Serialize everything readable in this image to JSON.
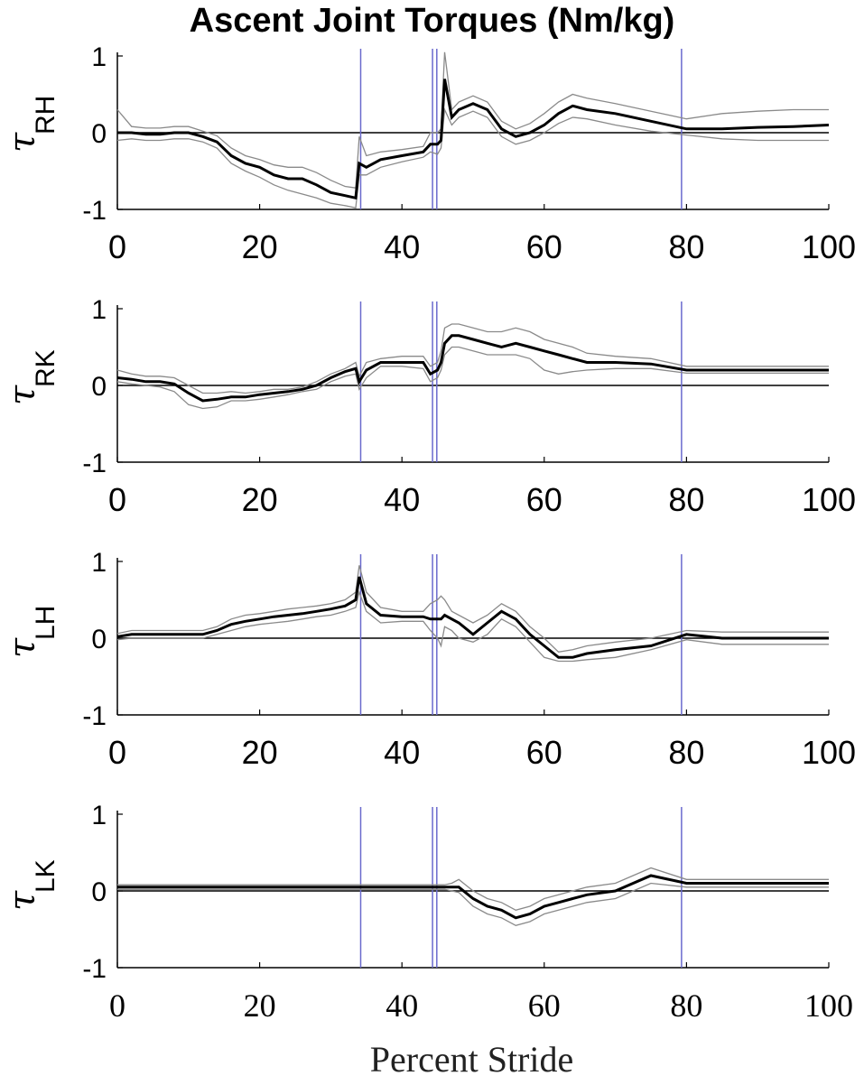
{
  "title": "Ascent Joint Torques (Nm/kg)",
  "xlabel": "Percent Stride",
  "chart_data": {
    "type": "line",
    "x_ticks": [
      "0",
      "20",
      "40",
      "60",
      "80",
      "100"
    ],
    "y_ticks": [
      "1",
      "0",
      "-1"
    ],
    "xlim": [
      0,
      100
    ],
    "ylim": [
      -1,
      1
    ],
    "event_lines_x": [
      34.2,
      44.3,
      44.9,
      79.3
    ],
    "colors": {
      "mean": "#000000",
      "band": "#8a8a8a",
      "event": "#6a6acd",
      "zero": "#000000"
    },
    "panels": [
      {
        "ylabel_symbol": "τ",
        "ylabel_subscript": "RH",
        "x": [
          0,
          2,
          4,
          6,
          8,
          10,
          12,
          14,
          16,
          18,
          20,
          22,
          24,
          26,
          28,
          30,
          32,
          33.5,
          34,
          35,
          37,
          40,
          43,
          44,
          45,
          45.5,
          46,
          47,
          48,
          50,
          52,
          54,
          56,
          58,
          60,
          62,
          64,
          66,
          70,
          75,
          80,
          85,
          90,
          95,
          100
        ],
        "mean": [
          0,
          0,
          -0.02,
          -0.02,
          0,
          0,
          -0.05,
          -0.12,
          -0.3,
          -0.4,
          -0.45,
          -0.55,
          -0.6,
          -0.6,
          -0.68,
          -0.78,
          -0.82,
          -0.85,
          -0.4,
          -0.45,
          -0.35,
          -0.3,
          -0.25,
          -0.15,
          -0.15,
          -0.1,
          0.7,
          0.2,
          0.3,
          0.38,
          0.3,
          0.05,
          -0.05,
          0.0,
          0.1,
          0.25,
          0.35,
          0.3,
          0.25,
          0.15,
          0.05,
          0.05,
          0.07,
          0.08,
          0.1
        ],
        "lower": [
          -0.1,
          -0.08,
          -0.1,
          -0.1,
          -0.08,
          -0.08,
          -0.12,
          -0.2,
          -0.4,
          -0.5,
          -0.58,
          -0.68,
          -0.75,
          -0.8,
          -0.85,
          -0.92,
          -0.95,
          -0.98,
          -0.55,
          -0.55,
          -0.45,
          -0.38,
          -0.32,
          -0.25,
          -0.28,
          -0.2,
          0.3,
          0.1,
          0.2,
          0.28,
          0.2,
          -0.05,
          -0.15,
          -0.1,
          0.0,
          0.12,
          0.2,
          0.18,
          0.1,
          0.02,
          -0.03,
          -0.08,
          -0.1,
          -0.1,
          -0.1
        ],
        "upper": [
          0.3,
          0.08,
          0.06,
          0.06,
          0.08,
          0.08,
          0.02,
          -0.04,
          -0.2,
          -0.3,
          -0.35,
          -0.42,
          -0.45,
          -0.45,
          -0.52,
          -0.62,
          -0.7,
          -0.72,
          -0.05,
          -0.3,
          -0.25,
          -0.22,
          -0.18,
          0.0,
          0.0,
          0.05,
          1.05,
          0.3,
          0.4,
          0.48,
          0.4,
          0.15,
          0.05,
          0.12,
          0.25,
          0.4,
          0.5,
          0.45,
          0.38,
          0.28,
          0.18,
          0.25,
          0.28,
          0.3,
          0.3
        ]
      },
      {
        "ylabel_symbol": "τ",
        "ylabel_subscript": "RK",
        "x": [
          0,
          2,
          4,
          6,
          8,
          10,
          12,
          14,
          16,
          18,
          20,
          22,
          24,
          26,
          28,
          30,
          32,
          33.5,
          34,
          35,
          37,
          40,
          43,
          44,
          45,
          45.5,
          46,
          47,
          48,
          50,
          52,
          54,
          56,
          58,
          60,
          62,
          64,
          66,
          70,
          75,
          80,
          85,
          90,
          95,
          100
        ],
        "mean": [
          0.1,
          0.08,
          0.05,
          0.05,
          0.02,
          -0.1,
          -0.2,
          -0.18,
          -0.15,
          -0.15,
          -0.12,
          -0.1,
          -0.08,
          -0.05,
          0,
          0.1,
          0.18,
          0.22,
          0.05,
          0.2,
          0.3,
          0.3,
          0.3,
          0.15,
          0.2,
          0.3,
          0.55,
          0.65,
          0.65,
          0.6,
          0.55,
          0.5,
          0.55,
          0.5,
          0.45,
          0.4,
          0.35,
          0.3,
          0.3,
          0.28,
          0.2,
          0.2,
          0.2,
          0.2,
          0.2
        ],
        "lower": [
          0.05,
          0.02,
          0,
          -0.02,
          -0.08,
          -0.25,
          -0.3,
          -0.28,
          -0.2,
          -0.2,
          -0.18,
          -0.15,
          -0.12,
          -0.08,
          -0.05,
          0.05,
          0.12,
          0.15,
          -0.05,
          0.1,
          0.25,
          0.25,
          0.22,
          0.05,
          0.1,
          0.2,
          0.4,
          0.5,
          0.5,
          0.45,
          0.4,
          0.4,
          0.4,
          0.35,
          0.2,
          0.15,
          0.18,
          0.2,
          0.22,
          0.22,
          0.16,
          0.16,
          0.16,
          0.16,
          0.16
        ],
        "upper": [
          0.2,
          0.15,
          0.12,
          0.12,
          0.1,
          0.0,
          -0.1,
          -0.1,
          -0.08,
          -0.1,
          -0.08,
          -0.05,
          -0.05,
          -0.02,
          0.05,
          0.15,
          0.22,
          0.3,
          0.12,
          0.3,
          0.35,
          0.38,
          0.38,
          0.25,
          0.3,
          0.45,
          0.75,
          0.8,
          0.8,
          0.75,
          0.7,
          0.7,
          0.75,
          0.7,
          0.6,
          0.55,
          0.5,
          0.42,
          0.38,
          0.35,
          0.25,
          0.25,
          0.25,
          0.25,
          0.25
        ]
      },
      {
        "ylabel_symbol": "τ",
        "ylabel_subscript": "LH",
        "x": [
          0,
          2,
          4,
          6,
          8,
          10,
          12,
          14,
          16,
          18,
          20,
          22,
          24,
          26,
          28,
          30,
          32,
          33.5,
          34,
          35,
          37,
          40,
          43,
          44,
          45,
          45.5,
          46,
          47,
          48,
          50,
          52,
          54,
          56,
          58,
          60,
          62,
          64,
          66,
          70,
          75,
          80,
          85,
          90,
          95,
          100
        ],
        "mean": [
          0.02,
          0.05,
          0.05,
          0.05,
          0.05,
          0.05,
          0.05,
          0.1,
          0.18,
          0.22,
          0.25,
          0.28,
          0.3,
          0.32,
          0.35,
          0.38,
          0.42,
          0.5,
          0.8,
          0.45,
          0.3,
          0.28,
          0.28,
          0.25,
          0.25,
          0.25,
          0.3,
          0.25,
          0.2,
          0.05,
          0.2,
          0.35,
          0.25,
          0.05,
          -0.1,
          -0.25,
          -0.25,
          -0.2,
          -0.15,
          -0.1,
          0.05,
          0.0,
          0.0,
          0.0,
          0.0
        ],
        "lower": [
          -0.02,
          0.0,
          0.0,
          0.0,
          0.0,
          0.0,
          0.0,
          0.05,
          0.1,
          0.15,
          0.18,
          0.2,
          0.22,
          0.25,
          0.28,
          0.3,
          0.35,
          0.4,
          0.6,
          0.35,
          0.2,
          0.22,
          0.22,
          0.1,
          0.0,
          -0.1,
          0.15,
          0.1,
          0.0,
          -0.05,
          0.05,
          0.25,
          0.15,
          -0.05,
          -0.25,
          -0.3,
          -0.3,
          -0.28,
          -0.25,
          -0.15,
          -0.02,
          -0.08,
          -0.08,
          -0.08,
          -0.08
        ],
        "upper": [
          0.06,
          0.1,
          0.1,
          0.1,
          0.1,
          0.1,
          0.1,
          0.15,
          0.25,
          0.3,
          0.32,
          0.35,
          0.38,
          0.4,
          0.42,
          0.45,
          0.5,
          0.6,
          0.95,
          0.6,
          0.4,
          0.35,
          0.35,
          0.45,
          0.5,
          0.55,
          0.5,
          0.35,
          0.3,
          0.2,
          0.3,
          0.45,
          0.35,
          0.15,
          0.0,
          -0.18,
          -0.15,
          -0.1,
          -0.05,
          0.0,
          0.1,
          0.08,
          0.08,
          0.08,
          0.08
        ]
      },
      {
        "ylabel_symbol": "τ",
        "ylabel_subscript": "LK",
        "x": [
          0,
          2,
          4,
          6,
          8,
          10,
          12,
          14,
          16,
          18,
          20,
          22,
          24,
          26,
          28,
          30,
          32,
          33.5,
          34,
          35,
          37,
          40,
          43,
          44,
          45,
          45.5,
          46,
          47,
          48,
          50,
          52,
          54,
          56,
          58,
          60,
          62,
          64,
          66,
          70,
          75,
          80,
          85,
          90,
          95,
          100
        ],
        "mean": [
          0.05,
          0.05,
          0.05,
          0.05,
          0.05,
          0.05,
          0.05,
          0.05,
          0.05,
          0.05,
          0.05,
          0.05,
          0.05,
          0.05,
          0.05,
          0.05,
          0.05,
          0.05,
          0.05,
          0.05,
          0.05,
          0.05,
          0.05,
          0.05,
          0.05,
          0.05,
          0.05,
          0.05,
          0.05,
          -0.1,
          -0.2,
          -0.25,
          -0.35,
          -0.3,
          -0.2,
          -0.15,
          -0.1,
          -0.05,
          0.0,
          0.2,
          0.1,
          0.1,
          0.1,
          0.1,
          0.1
        ],
        "lower": [
          0.02,
          0.02,
          0.02,
          0.02,
          0.02,
          0.02,
          0.02,
          0.02,
          0.02,
          0.02,
          0.02,
          0.02,
          0.02,
          0.02,
          0.02,
          0.02,
          0.02,
          0.02,
          0.02,
          0.02,
          0.02,
          0.02,
          0.02,
          0.02,
          0.02,
          0.02,
          0.02,
          0.0,
          -0.02,
          -0.2,
          -0.3,
          -0.35,
          -0.45,
          -0.4,
          -0.3,
          -0.25,
          -0.2,
          -0.15,
          -0.1,
          0.1,
          0.05,
          0.05,
          0.05,
          0.05,
          0.05
        ],
        "upper": [
          0.08,
          0.08,
          0.08,
          0.08,
          0.08,
          0.08,
          0.08,
          0.08,
          0.08,
          0.08,
          0.08,
          0.08,
          0.08,
          0.08,
          0.08,
          0.08,
          0.08,
          0.08,
          0.08,
          0.08,
          0.08,
          0.08,
          0.08,
          0.08,
          0.08,
          0.08,
          0.08,
          0.1,
          0.15,
          0.0,
          -0.1,
          -0.15,
          -0.25,
          -0.2,
          -0.1,
          -0.05,
          0.0,
          0.05,
          0.1,
          0.3,
          0.15,
          0.15,
          0.15,
          0.15,
          0.15
        ]
      }
    ]
  }
}
